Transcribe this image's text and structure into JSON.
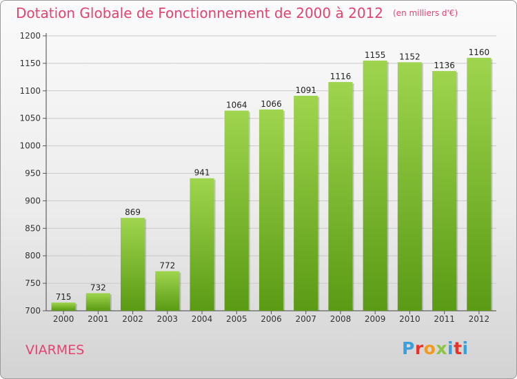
{
  "header": {
    "title": "Dotation Globale de Fonctionnement de 2000 à 2012",
    "unit": "(en milliers d'€)"
  },
  "commune": "VIARMES",
  "logo": {
    "text": "Proxiti",
    "colors": [
      "#3aa0dd",
      "#e8332a",
      "#f29a1f",
      "#8cc63f",
      "#3aa0dd",
      "#e8332a",
      "#3aa0dd"
    ]
  },
  "colors": {
    "bar_top": "#9fd54e",
    "bar_bottom": "#5a9a14",
    "title": "#e2436f",
    "grid": "#c9c9c9"
  },
  "chart_data": {
    "type": "bar",
    "categories": [
      "2000",
      "2001",
      "2002",
      "2003",
      "2004",
      "2005",
      "2006",
      "2007",
      "2008",
      "2009",
      "2010",
      "2011",
      "2012"
    ],
    "values": [
      715,
      732,
      869,
      772,
      941,
      1064,
      1066,
      1091,
      1116,
      1155,
      1152,
      1136,
      1160
    ],
    "ylim": [
      700,
      1200
    ],
    "yticks": [
      700,
      750,
      800,
      850,
      900,
      950,
      1000,
      1050,
      1100,
      1150,
      1200
    ],
    "grid": true
  }
}
